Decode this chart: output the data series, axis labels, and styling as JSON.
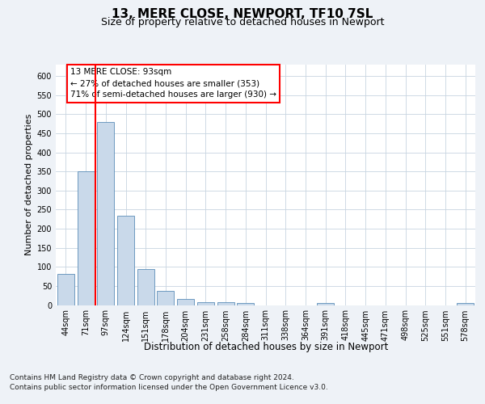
{
  "title": "13, MERE CLOSE, NEWPORT, TF10 7SL",
  "subtitle": "Size of property relative to detached houses in Newport",
  "xlabel": "Distribution of detached houses by size in Newport",
  "ylabel": "Number of detached properties",
  "footnote1": "Contains HM Land Registry data © Crown copyright and database right 2024.",
  "footnote2": "Contains public sector information licensed under the Open Government Licence v3.0.",
  "annotation_line1": "13 MERE CLOSE: 93sqm",
  "annotation_line2": "← 27% of detached houses are smaller (353)",
  "annotation_line3": "71% of semi-detached houses are larger (930) →",
  "bar_labels": [
    "44sqm",
    "71sqm",
    "97sqm",
    "124sqm",
    "151sqm",
    "178sqm",
    "204sqm",
    "231sqm",
    "258sqm",
    "284sqm",
    "311sqm",
    "338sqm",
    "364sqm",
    "391sqm",
    "418sqm",
    "445sqm",
    "471sqm",
    "498sqm",
    "525sqm",
    "551sqm",
    "578sqm"
  ],
  "bar_values": [
    82,
    350,
    480,
    235,
    95,
    37,
    16,
    8,
    8,
    5,
    0,
    0,
    0,
    5,
    0,
    0,
    0,
    0,
    0,
    0,
    5
  ],
  "bar_color": "#c9d9ea",
  "bar_edge_color": "#5b8db8",
  "red_line_x": 1.5,
  "ylim": [
    0,
    630
  ],
  "yticks": [
    0,
    50,
    100,
    150,
    200,
    250,
    300,
    350,
    400,
    450,
    500,
    550,
    600
  ],
  "bg_color": "#eef2f7",
  "plot_bg_color": "#ffffff",
  "grid_color": "#c8d4e0",
  "title_fontsize": 11,
  "subtitle_fontsize": 9,
  "ylabel_fontsize": 8,
  "xlabel_fontsize": 8.5,
  "tick_fontsize": 7,
  "footnote_fontsize": 6.5,
  "annotation_fontsize": 7.5
}
